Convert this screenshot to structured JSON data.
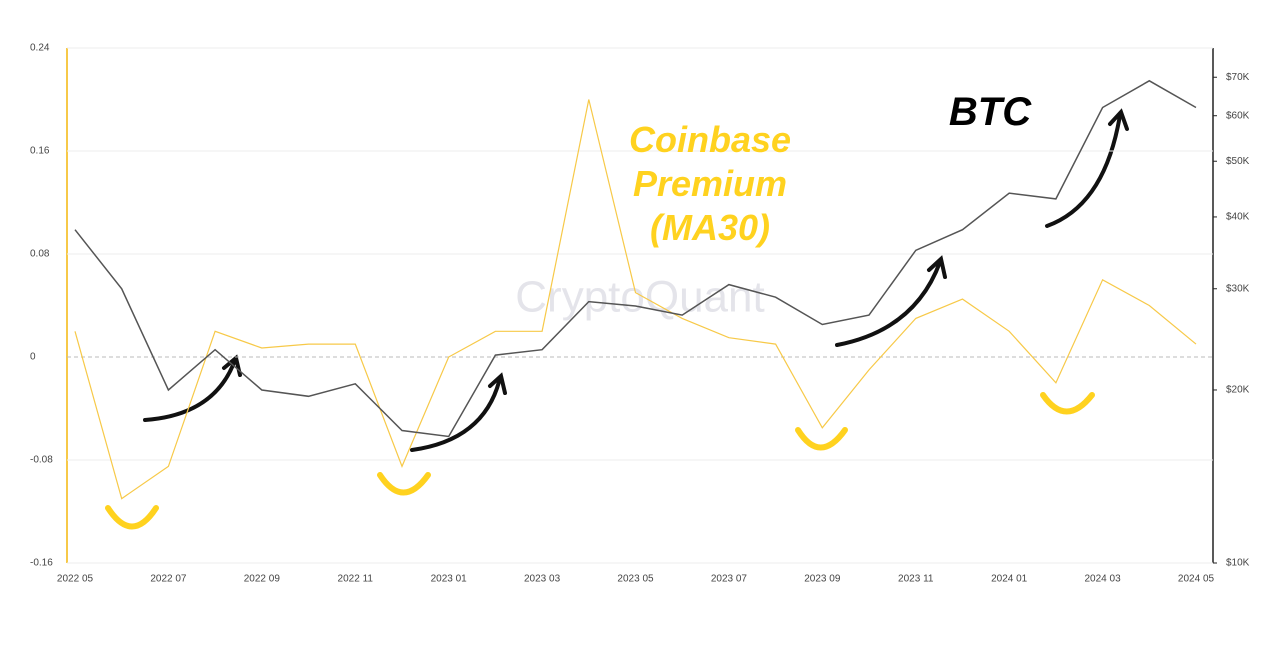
{
  "chart_data": {
    "type": "line",
    "x": [
      "2022 05",
      null,
      "2022 07",
      null,
      "2022 09",
      null,
      "2022 11",
      null,
      "2023 01",
      null,
      "2023 03",
      null,
      "2023 05",
      null,
      "2023 07",
      null,
      "2023 09",
      null,
      "2023 11",
      null,
      "2024 01",
      null,
      "2024 03",
      null,
      "2024 05"
    ],
    "series": [
      {
        "name": "Coinbase Premium (MA30)",
        "color": "#f7c948",
        "values": [
          0.02,
          -0.11,
          -0.085,
          0.02,
          0.007,
          0.01,
          0.01,
          -0.085,
          0.0,
          0.02,
          0.02,
          0.2,
          0.05,
          0.03,
          0.015,
          0.01,
          -0.055,
          -0.01,
          0.03,
          0.045,
          0.02,
          -0.02,
          0.06,
          0.04,
          0.01
        ]
      },
      {
        "name": "BTC",
        "color": "#555555",
        "axis": "y2",
        "values": [
          38000,
          30000,
          20000,
          23500,
          20000,
          19500,
          20500,
          17000,
          16600,
          23000,
          23500,
          28500,
          28000,
          27000,
          30500,
          29000,
          26000,
          27000,
          35000,
          38000,
          44000,
          43000,
          62000,
          69000,
          62000
        ]
      }
    ],
    "ylim": [
      -0.16,
      0.24
    ],
    "yticks": [
      -0.16,
      -0.08,
      0,
      0.08,
      0.16,
      0.24
    ],
    "y2lim": [
      10000,
      78700
    ],
    "y2log": true,
    "y2ticks": [
      {
        "value": 10000,
        "label": "$10K"
      },
      {
        "value": 20000,
        "label": "$20K"
      },
      {
        "value": 30000,
        "label": "$30K"
      },
      {
        "value": 40000,
        "label": "$40K"
      },
      {
        "value": 50000,
        "label": "$50K"
      },
      {
        "value": 60000,
        "label": "$60K"
      },
      {
        "value": 70000,
        "label": "$70K"
      }
    ],
    "grid": true,
    "watermark": "CryptoQuant"
  }
}
